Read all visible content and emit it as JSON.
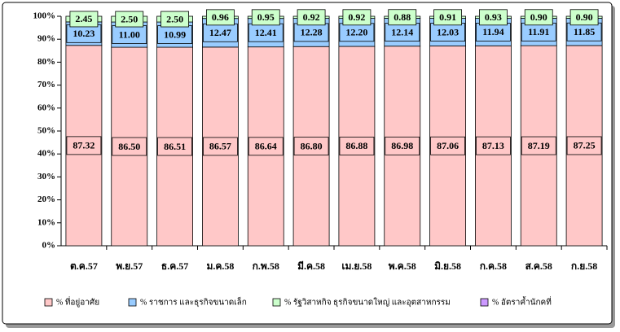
{
  "chart_data": {
    "type": "stacked_bar",
    "categories": [
      "ต.ค.57",
      "พ.ย.57",
      "ธ.ค.57",
      "ม.ค.58",
      "ก.พ.58",
      "มี.ค.58",
      "เม.ย.58",
      "พ.ค.58",
      "มิ.ย.58",
      "ก.ค.58",
      "ส.ค.58",
      "ก.ย.58"
    ],
    "series": [
      {
        "name": "% ที่อยู่อาศัย",
        "color": "#ffc8c8",
        "values": [
          87.32,
          86.5,
          86.51,
          86.57,
          86.64,
          86.8,
          86.88,
          86.98,
          87.06,
          87.13,
          87.19,
          87.25
        ],
        "value_labels": [
          "87.32",
          "86.50",
          "86.51",
          "86.57",
          "86.64",
          "86.80",
          "86.88",
          "86.98",
          "87.06",
          "87.13",
          "87.19",
          "87.25"
        ]
      },
      {
        "name": "% ราชการ และธุรกิจขนาดเล็ก",
        "color": "#99ccff",
        "values": [
          10.23,
          11.0,
          10.99,
          12.47,
          12.41,
          12.28,
          12.2,
          12.14,
          12.03,
          11.94,
          11.91,
          11.85
        ],
        "value_labels": [
          "10.23",
          "11.00",
          "10.99",
          "12.47",
          "12.41",
          "12.28",
          "12.20",
          "12.14",
          "12.03",
          "11.94",
          "11.91",
          "11.85"
        ]
      },
      {
        "name": "% รัฐวิสาหกิจ ธุรกิจขนาดใหญ่ และอุตสาหกรรม",
        "color": "#ccffcc",
        "values": [
          2.45,
          2.5,
          2.5,
          0.96,
          0.95,
          0.92,
          0.92,
          0.88,
          0.91,
          0.93,
          0.9,
          0.9
        ],
        "value_labels": [
          "2.45",
          "2.50",
          "2.50",
          "0.96",
          "0.95",
          "0.92",
          "0.92",
          "0.88",
          "0.91",
          "0.93",
          "0.90",
          "0.90"
        ]
      },
      {
        "name": "% อัตราค้ำนักคที่",
        "color": "#cc99ff",
        "values": [
          0,
          0,
          0,
          0,
          0,
          0,
          0,
          0,
          0,
          0,
          0,
          0
        ]
      }
    ],
    "ylim": [
      0,
      100
    ],
    "yticks": [
      {
        "value": 0,
        "label": "0%"
      },
      {
        "value": 10,
        "label": "10%"
      },
      {
        "value": 20,
        "label": "20%"
      },
      {
        "value": 30,
        "label": "30%"
      },
      {
        "value": 40,
        "label": "40%"
      },
      {
        "value": 50,
        "label": "50%"
      },
      {
        "value": 60,
        "label": "60%"
      },
      {
        "value": 70,
        "label": "70%"
      },
      {
        "value": 80,
        "label": "80%"
      },
      {
        "value": 90,
        "label": "90%"
      },
      {
        "value": 100,
        "label": "100%"
      }
    ],
    "legend": "bottom"
  }
}
